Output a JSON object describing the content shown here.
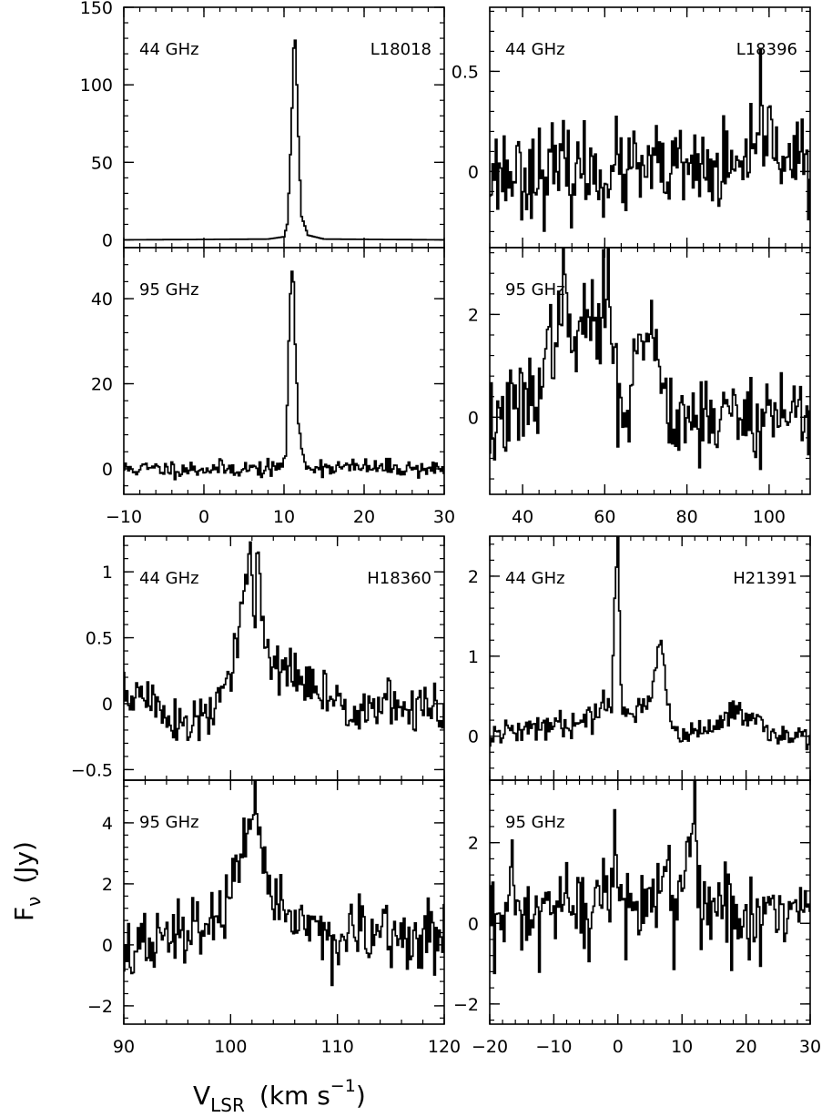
{
  "figure": {
    "ylabel_main": "F",
    "ylabel_sub": "ν",
    "ylabel_unit": "(Jy)",
    "xlabel_main": "V",
    "xlabel_sub": "LSR",
    "xlabel_unit": "(km s",
    "xlabel_exp": "−1",
    "xlabel_close": ")"
  },
  "chart_data": [
    {
      "type": "line",
      "step": true,
      "panel": "top-left-upper",
      "freq_label": "44 GHz",
      "source_label": "L18018",
      "xlim": [
        -10,
        30
      ],
      "ylim": [
        -5,
        150
      ],
      "xticks": [
        -10,
        0,
        10,
        20,
        30
      ],
      "yticks": [
        0,
        50,
        100,
        150
      ],
      "ytick_labels": [
        "0",
        "50",
        "100",
        "150"
      ],
      "show_xtick_labels": false,
      "series": [
        {
          "x": [
            -10,
            8,
            10,
            10.4,
            10.7,
            11.0,
            11.3,
            11.6,
            11.9,
            12.2,
            13,
            15,
            30
          ],
          "y": [
            0,
            0.5,
            2,
            10,
            40,
            85,
            143,
            100,
            50,
            15,
            3,
            0.5,
            0
          ]
        }
      ]
    },
    {
      "type": "line",
      "step": true,
      "panel": "top-left-lower",
      "freq_label": "95 GHz",
      "source_label": "",
      "xlim": [
        -10,
        30
      ],
      "ylim": [
        -6,
        52
      ],
      "xticks": [
        -10,
        0,
        10,
        20,
        30
      ],
      "yticks": [
        0,
        20,
        40
      ],
      "ytick_labels": [
        "0",
        "20",
        "40"
      ],
      "xtick_labels": [
        "−10",
        "0",
        "10",
        "20",
        "30"
      ],
      "show_xtick_labels": true,
      "noise": {
        "seed": 11,
        "sigma": 1.0
      },
      "series": [
        {
          "x": [
            -10,
            9,
            9.8,
            10.2,
            10.5,
            10.8,
            11.1,
            11.4,
            11.8,
            12.3,
            13,
            30
          ],
          "y": [
            0,
            0,
            1,
            4,
            20,
            42,
            50,
            30,
            10,
            3,
            0.5,
            0
          ]
        }
      ]
    },
    {
      "type": "line",
      "step": true,
      "panel": "top-right-upper",
      "freq_label": "44 GHz",
      "source_label": "L18396",
      "xlim": [
        32,
        110
      ],
      "ylim": [
        -0.38,
        0.82
      ],
      "xticks": [
        40,
        60,
        80,
        100
      ],
      "yticks": [
        0,
        0.5
      ],
      "ytick_labels": [
        "0",
        "0.5"
      ],
      "show_xtick_labels": false,
      "noise": {
        "seed": 23,
        "sigma": 0.11
      },
      "series": [
        {
          "x": [
            32,
            97,
            97.5,
            98,
            98.5,
            110
          ],
          "y": [
            0,
            0,
            0.3,
            0.55,
            0.2,
            0
          ]
        }
      ]
    },
    {
      "type": "line",
      "step": true,
      "panel": "top-right-lower",
      "freq_label": "95 GHz",
      "source_label": "",
      "xlim": [
        32,
        110
      ],
      "ylim": [
        -1.5,
        3.3
      ],
      "xticks": [
        40,
        60,
        80,
        100
      ],
      "yticks": [
        0,
        2
      ],
      "ytick_labels": [
        "0",
        "2"
      ],
      "xtick_labels": [
        "40",
        "60",
        "80",
        "100"
      ],
      "show_xtick_labels": true,
      "noise": {
        "seed": 37,
        "sigma": 0.45
      },
      "series": [
        {
          "x": [
            32,
            40,
            45,
            48,
            50,
            52,
            55,
            58,
            61,
            63,
            66,
            68,
            71,
            73,
            76,
            80,
            110
          ],
          "y": [
            -0.2,
            0.2,
            0.8,
            1.8,
            2.4,
            1.2,
            2.0,
            1.6,
            2.6,
            0.5,
            0.3,
            1.2,
            2.0,
            1.0,
            0.2,
            0.0,
            0.1
          ]
        }
      ]
    },
    {
      "type": "line",
      "step": true,
      "panel": "bottom-left-upper",
      "freq_label": "44 GHz",
      "source_label": "H18360",
      "xlim": [
        90,
        120
      ],
      "ylim": [
        -0.58,
        1.27
      ],
      "xticks": [
        90,
        100,
        110,
        120
      ],
      "yticks": [
        -0.5,
        0,
        0.5,
        1
      ],
      "ytick_labels": [
        "−0.5",
        "0",
        "0.5",
        "1"
      ],
      "show_xtick_labels": false,
      "noise": {
        "seed": 51,
        "sigma": 0.1
      },
      "series": [
        {
          "x": [
            90,
            93,
            96,
            98,
            100,
            101.3,
            101.8,
            102.2,
            102.6,
            103,
            104,
            106,
            110,
            120
          ],
          "y": [
            0.1,
            0.0,
            -0.2,
            -0.1,
            0.2,
            0.8,
            1.2,
            0.5,
            1.23,
            0.5,
            0.3,
            0.2,
            0.0,
            -0.05
          ]
        }
      ]
    },
    {
      "type": "line",
      "step": true,
      "panel": "bottom-left-lower",
      "freq_label": "95 GHz",
      "source_label": "",
      "xlim": [
        90,
        120
      ],
      "ylim": [
        -2.6,
        5.4
      ],
      "xticks": [
        90,
        100,
        110,
        120
      ],
      "yticks": [
        -2,
        0,
        2,
        4
      ],
      "ytick_labels": [
        "−2",
        "0",
        "2",
        "4"
      ],
      "xtick_labels": [
        "90",
        "100",
        "110",
        "120"
      ],
      "show_xtick_labels": true,
      "noise": {
        "seed": 67,
        "sigma": 0.55
      },
      "series": [
        {
          "x": [
            90,
            96,
            99,
            101,
            102,
            102.3,
            102.7,
            104,
            106,
            110,
            120
          ],
          "y": [
            -0.3,
            0.4,
            1.0,
            2.5,
            3.5,
            4.8,
            3.0,
            1.8,
            0.8,
            0.2,
            0.2
          ]
        }
      ]
    },
    {
      "type": "line",
      "step": true,
      "panel": "bottom-right-upper",
      "freq_label": "44 GHz",
      "source_label": "H21391",
      "xlim": [
        -20,
        30
      ],
      "ylim": [
        -0.55,
        2.5
      ],
      "xticks": [
        -20,
        -10,
        0,
        10,
        20,
        30
      ],
      "yticks": [
        0,
        1,
        2
      ],
      "ytick_labels": [
        "0",
        "1",
        "2"
      ],
      "show_xtick_labels": false,
      "noise": {
        "seed": 79,
        "sigma": 0.08
      },
      "series": [
        {
          "x": [
            -20,
            -5,
            -1,
            -0.5,
            0,
            0.5,
            1,
            3,
            5,
            6,
            6.8,
            7.5,
            8.5,
            10,
            15,
            18,
            20,
            30
          ],
          "y": [
            0,
            0.2,
            0.5,
            1.8,
            2.4,
            0.6,
            0.3,
            0.3,
            0.5,
            0.9,
            1.25,
            0.6,
            0.1,
            0.0,
            0.1,
            0.4,
            0.2,
            -0.1
          ]
        }
      ]
    },
    {
      "type": "line",
      "step": true,
      "panel": "bottom-right-lower",
      "freq_label": "95 GHz",
      "source_label": "",
      "xlim": [
        -20,
        30
      ],
      "ylim": [
        -2.5,
        3.55
      ],
      "xticks": [
        -20,
        -10,
        0,
        10,
        20,
        30
      ],
      "yticks": [
        -2,
        0,
        2
      ],
      "ytick_labels": [
        "−2",
        "0",
        "2"
      ],
      "xtick_labels": [
        "−20",
        "−10",
        "0",
        "10",
        "20",
        "30"
      ],
      "show_xtick_labels": true,
      "noise": {
        "seed": 97,
        "sigma": 0.65
      },
      "series": [
        {
          "x": [
            -20,
            -5,
            -1,
            -0.5,
            0,
            1,
            5,
            11,
            12,
            12.5,
            13,
            20,
            30
          ],
          "y": [
            0,
            0.3,
            0.8,
            2.3,
            1.0,
            0.4,
            0.4,
            1.0,
            3.1,
            1.2,
            0.5,
            0.2,
            0.5
          ]
        }
      ]
    }
  ]
}
